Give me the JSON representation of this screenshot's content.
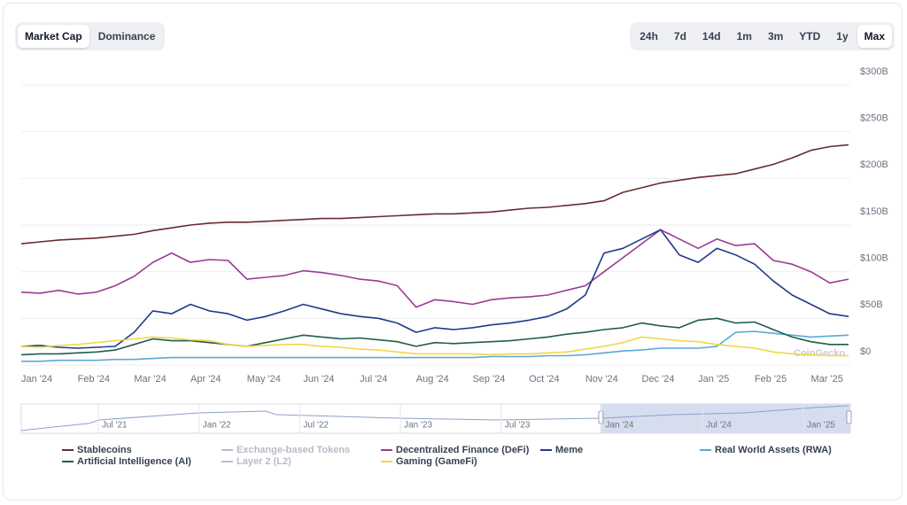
{
  "controls": {
    "metric": {
      "options": [
        "Market Cap",
        "Dominance"
      ],
      "selected": 0
    },
    "range": {
      "options": [
        "24h",
        "7d",
        "14d",
        "1m",
        "3m",
        "YTD",
        "1y",
        "Max"
      ],
      "selected": 7
    }
  },
  "chart_data": {
    "type": "line",
    "categories": [
      "Jan '24",
      null,
      null,
      "Feb '24",
      null,
      null,
      "Mar '24",
      null,
      null,
      "Apr '24",
      null,
      null,
      "May '24",
      null,
      null,
      "Jun '24",
      null,
      null,
      "Jul '24",
      null,
      null,
      "Aug '24",
      null,
      null,
      "Sep '24",
      null,
      null,
      "Oct '24",
      null,
      null,
      "Nov '24",
      null,
      null,
      "Dec '24",
      null,
      null,
      "Jan '25",
      null,
      null,
      "Feb '25",
      null,
      null,
      "Mar '25",
      null,
      null
    ],
    "ylim": [
      0,
      300
    ],
    "yticks": [
      {
        "value": 0,
        "label": "$0"
      },
      {
        "value": 50,
        "label": "$50B"
      },
      {
        "value": 100,
        "label": "$100B"
      },
      {
        "value": 150,
        "label": "$150B"
      },
      {
        "value": 200,
        "label": "$200B"
      },
      {
        "value": 250,
        "label": "$250B"
      },
      {
        "value": 300,
        "label": "$300B"
      }
    ],
    "grid": true,
    "series": [
      {
        "name": "Stablecoins",
        "color": "#6b2b2f",
        "values": [
          130,
          132,
          134,
          135,
          136,
          138,
          140,
          144,
          147,
          150,
          152,
          153,
          153,
          154,
          155,
          156,
          157,
          157,
          158,
          159,
          160,
          161,
          162,
          162,
          163,
          164,
          166,
          168,
          169,
          171,
          173,
          176,
          185,
          190,
          195,
          198,
          201,
          203,
          205,
          210,
          215,
          222,
          230,
          234,
          236
        ]
      },
      {
        "name": "Exchange-based Tokens",
        "color": "#b8bcc6",
        "visible": false
      },
      {
        "name": "Decentralized Finance (DeFi)",
        "color": "#9c3a94",
        "values": [
          78,
          77,
          80,
          76,
          78,
          85,
          95,
          110,
          120,
          110,
          113,
          112,
          92,
          94,
          96,
          101,
          99,
          96,
          92,
          90,
          85,
          62,
          70,
          68,
          65,
          70,
          72,
          73,
          75,
          80,
          85,
          100,
          115,
          130,
          145,
          135,
          125,
          135,
          128,
          130,
          112,
          108,
          100,
          88,
          92
        ]
      },
      {
        "name": "Meme",
        "color": "#1f3a8a",
        "values": [
          20,
          21,
          19,
          18,
          19,
          20,
          35,
          58,
          55,
          65,
          58,
          55,
          48,
          52,
          58,
          65,
          60,
          55,
          52,
          50,
          45,
          35,
          40,
          38,
          40,
          43,
          45,
          48,
          52,
          60,
          75,
          120,
          125,
          135,
          145,
          118,
          110,
          125,
          118,
          108,
          90,
          75,
          65,
          55,
          52
        ]
      },
      {
        "name": "Real World Assets (RWA)",
        "color": "#5aa9d6",
        "values": [
          4,
          4,
          5,
          5,
          5,
          6,
          6,
          7,
          8,
          8,
          8,
          8,
          8,
          8,
          8,
          8,
          8,
          8,
          8,
          8,
          8,
          8,
          8,
          8,
          8,
          9,
          9,
          9,
          10,
          10,
          11,
          13,
          15,
          16,
          18,
          18,
          18,
          20,
          35,
          36,
          34,
          32,
          30,
          31,
          32
        ]
      },
      {
        "name": "Artificial Intelligence (AI)",
        "color": "#1d5e4f",
        "values": [
          11,
          12,
          12,
          13,
          14,
          16,
          22,
          28,
          26,
          26,
          24,
          22,
          20,
          24,
          28,
          32,
          30,
          28,
          29,
          27,
          25,
          20,
          24,
          23,
          24,
          25,
          26,
          28,
          30,
          33,
          35,
          38,
          40,
          45,
          42,
          40,
          48,
          50,
          45,
          46,
          38,
          30,
          25,
          22,
          22
        ]
      },
      {
        "name": "Layer 2 (L2)",
        "color": "#b8bcc6",
        "visible": false
      },
      {
        "name": "Gaming (GameFi)",
        "color": "#f2d64b",
        "values": [
          20,
          19,
          21,
          22,
          24,
          26,
          28,
          30,
          29,
          27,
          26,
          22,
          20,
          21,
          22,
          22,
          20,
          19,
          17,
          16,
          14,
          12,
          12,
          12,
          12,
          11,
          12,
          12,
          13,
          14,
          17,
          20,
          24,
          30,
          28,
          26,
          25,
          22,
          20,
          18,
          14,
          12,
          11,
          10,
          10
        ]
      }
    ]
  },
  "navigator": {
    "labels": [
      "Jul '21",
      "Jan '22",
      "Jul '22",
      "Jan '23",
      "Jul '23",
      "Jan '24",
      "Jul '24",
      "Jan '25"
    ]
  },
  "watermark": "CoinGecko"
}
